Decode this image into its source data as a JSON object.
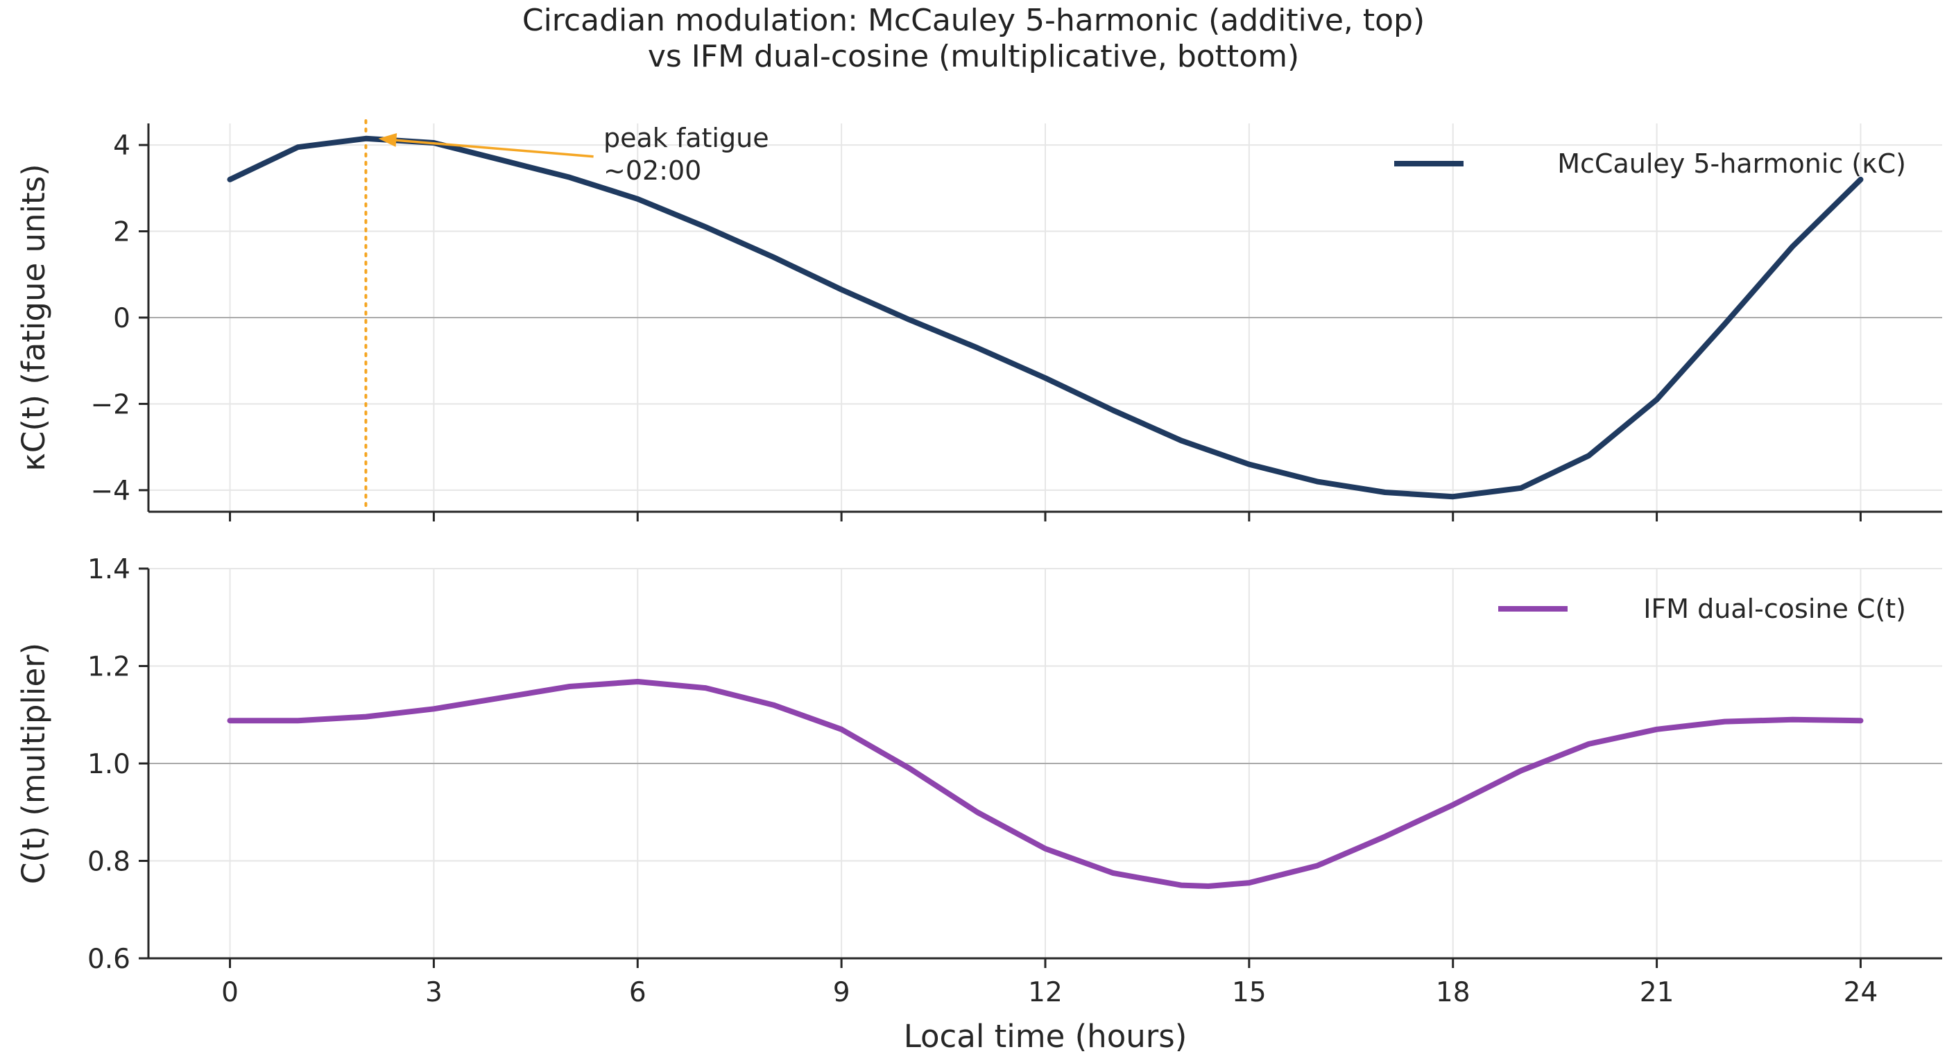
{
  "title": {
    "line1": "Circadian modulation: McCauley 5-harmonic (additive, top)",
    "line2": "vs IFM dual-cosine (multiplicative, bottom)"
  },
  "chart_data": [
    {
      "type": "line",
      "panel": "top",
      "ylabel": "κC(t)  (fatigue units)",
      "xlabel": "",
      "xlim": [
        -1.2,
        25.2
      ],
      "ylim": [
        -4.5,
        4.5
      ],
      "xticks": [
        0,
        3,
        6,
        9,
        12,
        15,
        18,
        21,
        24
      ],
      "yticks": [
        -4,
        -2,
        0,
        2,
        4
      ],
      "ytick_labels": [
        "−4",
        "−2",
        "0",
        "2",
        "4"
      ],
      "grid": true,
      "reference_line_y": 0,
      "legend_position": "upper-right",
      "series": [
        {
          "name": "McCauley 5-harmonic (κC)",
          "color": "#1f3a60",
          "x": [
            0,
            1,
            2,
            3,
            4,
            5,
            6,
            7,
            8,
            9,
            10,
            11,
            12,
            13,
            14,
            15,
            16,
            17,
            18,
            19,
            20,
            21,
            22,
            23,
            24
          ],
          "y": [
            3.2,
            3.95,
            4.15,
            4.05,
            3.65,
            3.25,
            2.75,
            2.1,
            1.4,
            0.65,
            -0.05,
            -0.7,
            -1.4,
            -2.15,
            -2.85,
            -3.4,
            -3.8,
            -4.05,
            -4.15,
            -3.95,
            -3.2,
            -1.9,
            -0.15,
            1.65,
            3.2
          ]
        }
      ],
      "annotations": [
        {
          "text_line1": "peak fatigue",
          "text_line2": "~02:00",
          "x": 2,
          "y": 4.15,
          "color": "#f5a623"
        }
      ]
    },
    {
      "type": "line",
      "panel": "bottom",
      "ylabel": "C(t)  (multiplier)",
      "xlabel": "Local time (hours)",
      "xlim": [
        -1.2,
        25.2
      ],
      "ylim": [
        0.6,
        1.4
      ],
      "xticks": [
        0,
        3,
        6,
        9,
        12,
        15,
        18,
        21,
        24
      ],
      "xtick_labels": [
        "0",
        "3",
        "6",
        "9",
        "12",
        "15",
        "18",
        "21",
        "24"
      ],
      "yticks": [
        0.6,
        0.8,
        1.0,
        1.2,
        1.4
      ],
      "ytick_labels": [
        "0.6",
        "0.8",
        "1.0",
        "1.2",
        "1.4"
      ],
      "grid": true,
      "reference_line_y": 1.0,
      "legend_position": "upper-right",
      "series": [
        {
          "name": "IFM dual-cosine C(t)",
          "color": "#8e44ad",
          "x": [
            0,
            1,
            2,
            3,
            4,
            5,
            6,
            7,
            8,
            9,
            10,
            11,
            12,
            13,
            14,
            14.4,
            15,
            16,
            17,
            18,
            19,
            20,
            21,
            22,
            23,
            24
          ],
          "y": [
            1.088,
            1.088,
            1.096,
            1.112,
            1.135,
            1.158,
            1.168,
            1.155,
            1.12,
            1.07,
            0.99,
            0.9,
            0.825,
            0.775,
            0.75,
            0.748,
            0.755,
            0.79,
            0.85,
            0.915,
            0.985,
            1.04,
            1.07,
            1.086,
            1.09,
            1.088
          ]
        }
      ]
    }
  ]
}
